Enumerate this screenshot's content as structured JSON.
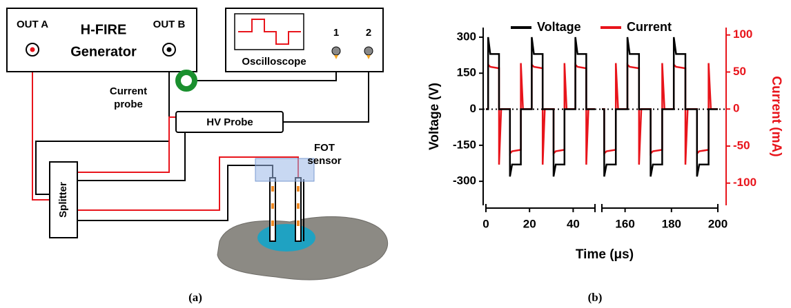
{
  "diagram": {
    "out_a": "OUT A",
    "generator_line1": "H-FIRE",
    "generator_line2": "Generator",
    "out_b": "OUT B",
    "oscilloscope": "Oscilloscope",
    "channel1": "1",
    "channel2": "2",
    "current_probe_line1": "Current",
    "current_probe_line2": "probe",
    "hv_probe": "HV Probe",
    "splitter": "Splitter",
    "fot_line1": "FOT",
    "fot_line2": "sensor"
  },
  "captions": [
    "(a)",
    "(b)"
  ],
  "chart_data": {
    "type": "line",
    "x_label": "Time (μs)",
    "y_label": "Voltage (V)",
    "y2_label": "Current (mA)",
    "x_segments": [
      {
        "xlim": [
          0,
          50
        ],
        "xticks": [
          0,
          20,
          40
        ]
      },
      {
        "xlim": [
          150,
          200
        ],
        "xticks": [
          160,
          180,
          200
        ]
      }
    ],
    "ylim": [
      -400,
      340
    ],
    "yticks": [
      -300,
      -150,
      0,
      150,
      300
    ],
    "y2lim": [
      -130,
      110
    ],
    "y2ticks": [
      -100,
      -50,
      0,
      50,
      100
    ],
    "y2color": "#e8141b",
    "legend": "top",
    "x": [
      0,
      1,
      1,
      2,
      6,
      6,
      7,
      11,
      11,
      12,
      16,
      16,
      17,
      21,
      21,
      22,
      26,
      26,
      27,
      31,
      31,
      32,
      36,
      36,
      37,
      41,
      41,
      42,
      46,
      46,
      47,
      50,
      100,
      150,
      151,
      151,
      152,
      156,
      156,
      157,
      161,
      161,
      162,
      166,
      166,
      167,
      171,
      171,
      172,
      176,
      176,
      177,
      181,
      181,
      182,
      186,
      186,
      187,
      191,
      191,
      192,
      196,
      196,
      197,
      200
    ],
    "series": [
      {
        "name": "Voltage",
        "color": "#000000",
        "axis": "y",
        "values": [
          0,
          0,
          300,
          230,
          230,
          0,
          0,
          0,
          -280,
          -230,
          -230,
          0,
          0,
          0,
          300,
          230,
          230,
          0,
          0,
          0,
          -280,
          -230,
          -230,
          0,
          0,
          0,
          300,
          230,
          230,
          0,
          0,
          0,
          null,
          0,
          0,
          -280,
          -230,
          -230,
          0,
          0,
          0,
          300,
          230,
          230,
          0,
          0,
          0,
          -280,
          -230,
          -230,
          0,
          0,
          0,
          300,
          230,
          230,
          0,
          0,
          0,
          -280,
          -230,
          -230,
          0,
          0,
          0
        ]
      },
      {
        "name": "Current",
        "color": "#e8141b",
        "axis": "y2",
        "values": [
          0,
          0,
          60,
          57,
          55,
          -75,
          0,
          0,
          -60,
          -57,
          -55,
          62,
          0,
          0,
          60,
          57,
          55,
          -75,
          0,
          0,
          -60,
          -57,
          -55,
          62,
          0,
          0,
          60,
          57,
          55,
          -75,
          0,
          0,
          null,
          0,
          0,
          -60,
          -57,
          -55,
          62,
          0,
          0,
          60,
          57,
          55,
          -75,
          0,
          0,
          -60,
          -57,
          -55,
          62,
          0,
          0,
          60,
          57,
          55,
          -75,
          0,
          0,
          -60,
          -57,
          -55,
          62,
          0,
          0
        ]
      }
    ]
  }
}
